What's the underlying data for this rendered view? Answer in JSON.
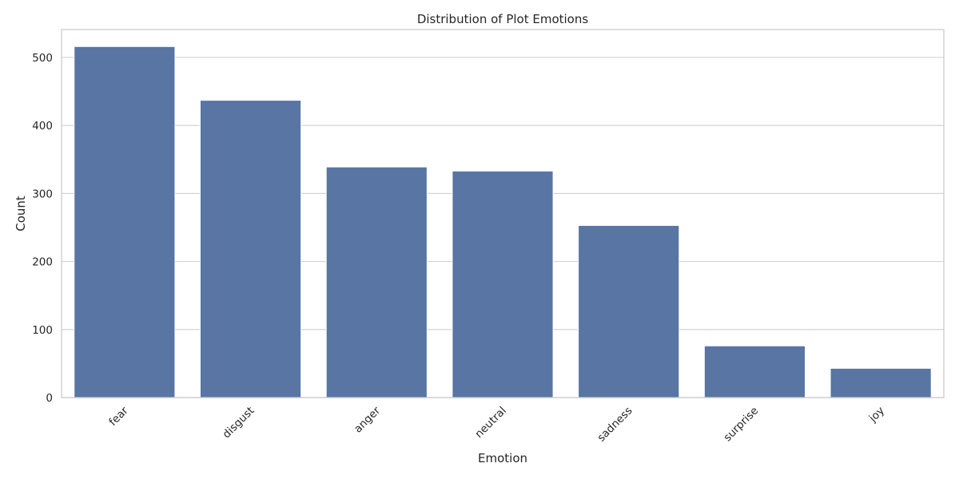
{
  "chart_data": {
    "type": "bar",
    "title": "Distribution of Plot Emotions",
    "xlabel": "Emotion",
    "ylabel": "Count",
    "categories": [
      "fear",
      "disgust",
      "anger",
      "neutral",
      "sadness",
      "surprise",
      "joy"
    ],
    "values": [
      516,
      437,
      339,
      333,
      253,
      76,
      43
    ],
    "ylim": [
      0,
      541
    ],
    "yticks": [
      0,
      100,
      200,
      300,
      400,
      500
    ],
    "bar_color": "#5875a4",
    "grid": "y",
    "grid_color": "#d3d3d3",
    "frame_color": "#cccccc",
    "x_tick_rotation": "45"
  }
}
